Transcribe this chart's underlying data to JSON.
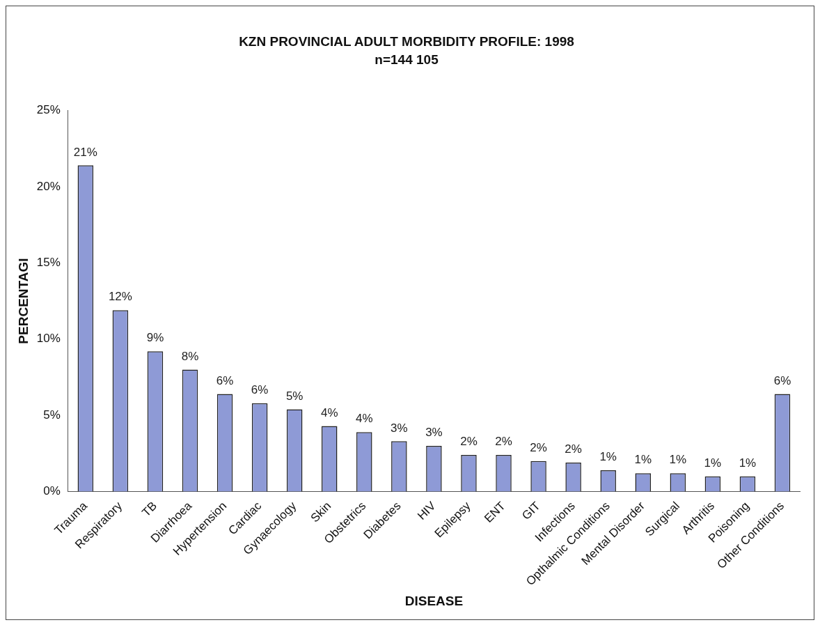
{
  "chart_data": {
    "type": "bar",
    "title": "KZN PROVINCIAL ADULT MORBIDITY PROFILE: 1998",
    "subtitle": "n=144 105",
    "xlabel": "DISEASE",
    "ylabel": "PERCENTAGI",
    "categories": [
      "Trauma",
      "Respiratory",
      "TB",
      "Diarrhoea",
      "Hypertension",
      "Cardiac",
      "Gynaecology",
      "Skin",
      "Obstetrics",
      "Diabetes",
      "HIV",
      "Epilepsy",
      "ENT",
      "GIT",
      "Infections",
      "Opthalmic Conditions",
      "Mental Disorder",
      "Surgical",
      "Arthritis",
      "Poisoning",
      "Other Conditions"
    ],
    "values": [
      21.4,
      11.9,
      9.2,
      8.0,
      6.4,
      5.8,
      5.4,
      4.3,
      3.9,
      3.3,
      3.0,
      2.4,
      2.4,
      2.0,
      1.9,
      1.4,
      1.2,
      1.2,
      1.0,
      1.0,
      6.4
    ],
    "value_labels": [
      "21%",
      "12%",
      "9%",
      "8%",
      "6%",
      "6%",
      "5%",
      "4%",
      "4%",
      "3%",
      "3%",
      "2%",
      "2%",
      "2%",
      "2%",
      "1%",
      "1%",
      "1%",
      "1%",
      "1%",
      "6%"
    ],
    "color": "#8e9ad6",
    "ylim": [
      0,
      25
    ],
    "yticks": [
      {
        "value": 0,
        "label": "0%"
      },
      {
        "value": 5,
        "label": "5%"
      },
      {
        "value": 10,
        "label": "10%"
      },
      {
        "value": 15,
        "label": "15%"
      },
      {
        "value": 20,
        "label": "20%"
      },
      {
        "value": 25,
        "label": "25%"
      }
    ]
  }
}
